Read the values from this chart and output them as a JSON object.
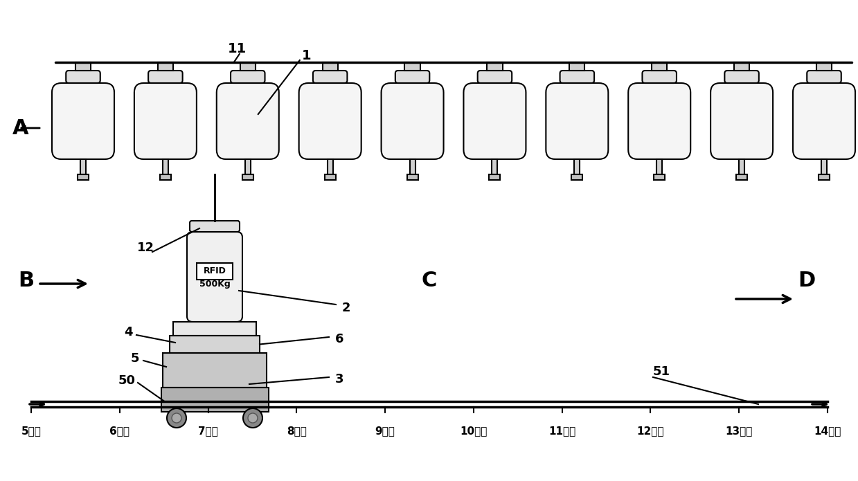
{
  "background_color": "#ffffff",
  "line_color": "#000000",
  "label_A": "A",
  "label_B": "B",
  "label_C": "C",
  "label_D": "D",
  "positions": [
    "5号位",
    "6号位",
    "7号位",
    "8号位",
    "9号位",
    "10号位",
    "11号位",
    "12号位",
    "13号位",
    "14号位"
  ],
  "num_tanks": 10,
  "tank_label_11": "11",
  "tank_label_1": "1",
  "label_12": "12",
  "label_2": "2",
  "label_4": "4",
  "label_5": "5",
  "label_50": "50",
  "label_6": "6",
  "label_3": "3",
  "label_51": "51",
  "rfid_text": "RFID",
  "weight_text": "500Kg"
}
